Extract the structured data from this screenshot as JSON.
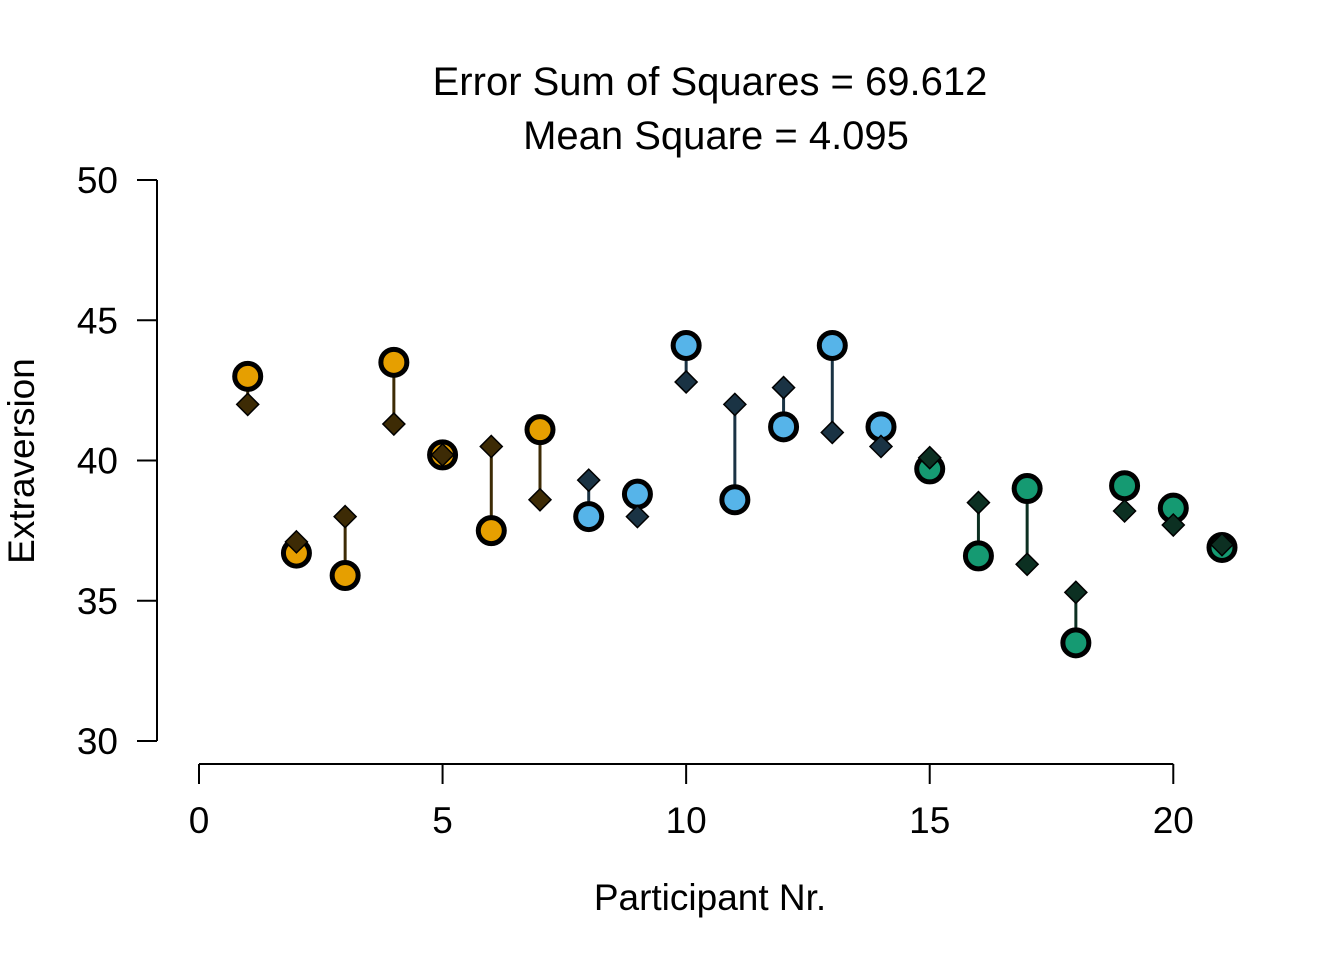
{
  "chart_data": {
    "type": "scatter",
    "title": "Error Sum of Squares = 69.612",
    "subtitle": "Mean Square = 4.095",
    "xlabel": "Participant Nr.",
    "ylabel": "Extraversion",
    "xlim": [
      0,
      21
    ],
    "ylim": [
      30,
      50
    ],
    "xticks": [
      0,
      5,
      10,
      15,
      20
    ],
    "yticks": [
      30,
      35,
      40,
      45,
      50
    ],
    "grid": false,
    "legend": "none",
    "group_colors": {
      "orange": {
        "fill": "#E69F00",
        "diamond": "#3D2B05"
      },
      "blue": {
        "fill": "#56B4E9",
        "diamond": "#1A3344"
      },
      "green": {
        "fill": "#159A72",
        "diamond": "#0C3022"
      }
    },
    "points": [
      {
        "x": 1,
        "observed": 43.0,
        "predicted": 42.0,
        "group": "orange"
      },
      {
        "x": 2,
        "observed": 36.7,
        "predicted": 37.1,
        "group": "orange"
      },
      {
        "x": 3,
        "observed": 35.9,
        "predicted": 38.0,
        "group": "orange"
      },
      {
        "x": 4,
        "observed": 43.5,
        "predicted": 41.3,
        "group": "orange"
      },
      {
        "x": 5,
        "observed": 40.2,
        "predicted": 40.2,
        "group": "orange"
      },
      {
        "x": 6,
        "observed": 37.5,
        "predicted": 40.5,
        "group": "orange"
      },
      {
        "x": 7,
        "observed": 41.1,
        "predicted": 38.6,
        "group": "orange"
      },
      {
        "x": 8,
        "observed": 38.0,
        "predicted": 39.3,
        "group": "blue"
      },
      {
        "x": 9,
        "observed": 38.8,
        "predicted": 38.0,
        "group": "blue"
      },
      {
        "x": 10,
        "observed": 44.1,
        "predicted": 42.8,
        "group": "blue"
      },
      {
        "x": 11,
        "observed": 38.6,
        "predicted": 42.0,
        "group": "blue"
      },
      {
        "x": 12,
        "observed": 41.2,
        "predicted": 42.6,
        "group": "blue"
      },
      {
        "x": 13,
        "observed": 44.1,
        "predicted": 41.0,
        "group": "blue"
      },
      {
        "x": 14,
        "observed": 41.2,
        "predicted": 40.5,
        "group": "blue"
      },
      {
        "x": 15,
        "observed": 39.7,
        "predicted": 40.1,
        "group": "green"
      },
      {
        "x": 16,
        "observed": 36.6,
        "predicted": 38.5,
        "group": "green"
      },
      {
        "x": 17,
        "observed": 39.0,
        "predicted": 36.3,
        "group": "green"
      },
      {
        "x": 18,
        "observed": 33.5,
        "predicted": 35.3,
        "group": "green"
      },
      {
        "x": 19,
        "observed": 39.1,
        "predicted": 38.2,
        "group": "green"
      },
      {
        "x": 20,
        "observed": 38.3,
        "predicted": 37.7,
        "group": "green"
      },
      {
        "x": 21,
        "observed": 36.9,
        "predicted": 37.0,
        "group": "green"
      }
    ]
  }
}
